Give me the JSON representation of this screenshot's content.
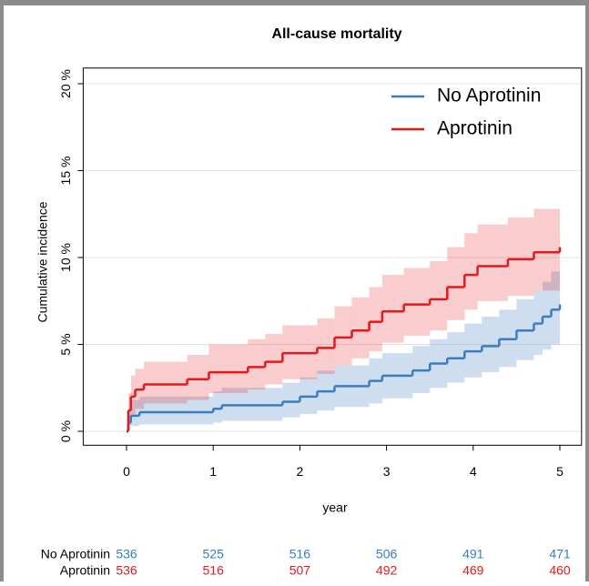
{
  "chart_data": {
    "type": "step",
    "title": "All-cause mortality",
    "x_label": "year",
    "y_label": "Cumulative incidence",
    "xlim": [
      -0.5,
      5.25
    ],
    "ylim": [
      -0.8,
      20.9
    ],
    "xticks": [
      0,
      1,
      2,
      3,
      4,
      5
    ],
    "yticks": [
      {
        "value": 0,
        "label": "0 %"
      },
      {
        "value": 5,
        "label": "5 %"
      },
      {
        "value": 10,
        "label": "10 %"
      },
      {
        "value": 15,
        "label": "15 %"
      },
      {
        "value": 20,
        "label": "20 %"
      }
    ],
    "grid": true,
    "legend": "top-right",
    "series": [
      {
        "name": "No Aprotinin",
        "color": "#3a7dbf",
        "band_color": "rgba(58,125,191,0.25)",
        "x": [
          0,
          0.02,
          0.05,
          0.15,
          1.0,
          1.1,
          1.8,
          2.0,
          2.2,
          2.4,
          2.8,
          2.95,
          3.3,
          3.5,
          3.7,
          3.9,
          4.1,
          4.3,
          4.5,
          4.7,
          4.8,
          4.9,
          5.0
        ],
        "values": [
          0,
          0.5,
          0.9,
          1.1,
          1.3,
          1.5,
          1.7,
          2.0,
          2.3,
          2.6,
          2.9,
          3.2,
          3.5,
          3.9,
          4.2,
          4.6,
          4.9,
          5.3,
          5.8,
          6.2,
          6.6,
          7.0,
          7.3
        ],
        "lower": [
          0,
          0.1,
          0.3,
          0.4,
          0.5,
          0.6,
          0.8,
          1.0,
          1.2,
          1.4,
          1.6,
          1.9,
          2.2,
          2.5,
          2.8,
          3.1,
          3.4,
          3.7,
          4.1,
          4.4,
          4.7,
          5.0,
          5.2
        ],
        "upper": [
          0,
          1.1,
          1.8,
          2.0,
          2.3,
          2.5,
          2.8,
          3.1,
          3.5,
          3.8,
          4.2,
          4.5,
          4.9,
          5.3,
          5.7,
          6.2,
          6.6,
          7.0,
          7.6,
          8.1,
          8.6,
          9.2,
          9.6
        ],
        "at_risk": [
          536,
          525,
          516,
          506,
          491,
          471
        ]
      },
      {
        "name": "Aprotinin",
        "color": "#e3191c",
        "band_color": "rgba(227,25,28,0.22)",
        "x": [
          0,
          0.02,
          0.05,
          0.1,
          0.2,
          0.7,
          0.95,
          1.4,
          1.6,
          1.8,
          2.2,
          2.4,
          2.6,
          2.8,
          2.95,
          3.2,
          3.5,
          3.7,
          3.9,
          4.05,
          4.4,
          4.7,
          5.0
        ],
        "values": [
          0,
          1.2,
          2.0,
          2.4,
          2.7,
          3.0,
          3.4,
          3.7,
          4.0,
          4.5,
          4.8,
          5.4,
          5.8,
          6.3,
          6.9,
          7.3,
          7.6,
          8.3,
          9.0,
          9.5,
          9.9,
          10.3,
          10.6
        ],
        "lower": [
          0,
          0.4,
          1.0,
          1.3,
          1.6,
          1.8,
          2.2,
          2.4,
          2.7,
          3.0,
          3.3,
          3.8,
          4.2,
          4.6,
          5.1,
          5.5,
          5.8,
          6.4,
          7.0,
          7.5,
          7.8,
          8.1,
          8.3
        ],
        "upper": [
          0,
          2.2,
          3.2,
          3.6,
          4.0,
          4.4,
          5.0,
          5.3,
          5.6,
          6.1,
          6.5,
          7.2,
          7.7,
          8.3,
          9.0,
          9.4,
          9.8,
          10.6,
          11.4,
          11.9,
          12.3,
          12.8,
          13.3
        ],
        "at_risk": [
          536,
          516,
          507,
          492,
          469,
          460
        ]
      }
    ]
  }
}
